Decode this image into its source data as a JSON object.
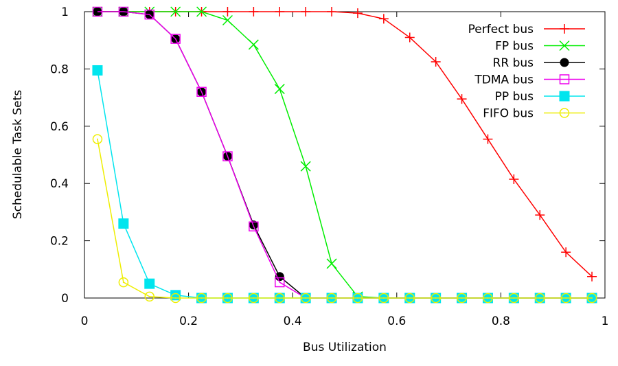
{
  "chart_data": {
    "type": "line",
    "title": "",
    "xlabel": "Bus Utilization",
    "ylabel": "Schedulable Task Sets",
    "xlim": [
      0,
      1
    ],
    "ylim": [
      0,
      1
    ],
    "xticks": [
      "0",
      "0.2",
      "0.4",
      "0.6",
      "0.8",
      "1"
    ],
    "yticks": [
      "0",
      "0.2",
      "0.4",
      "0.6",
      "0.8",
      "1"
    ],
    "grid": false,
    "legend_position": "top-right",
    "x": [
      0.025,
      0.075,
      0.125,
      0.175,
      0.225,
      0.275,
      0.325,
      0.375,
      0.425,
      0.475,
      0.525,
      0.575,
      0.625,
      0.675,
      0.725,
      0.775,
      0.825,
      0.875,
      0.925,
      0.975
    ],
    "series": [
      {
        "name": "Perfect bus",
        "color": "#ff0000",
        "marker": "plus",
        "values": [
          1,
          1,
          1,
          1,
          1,
          1,
          1,
          1,
          1,
          1,
          0.995,
          0.975,
          0.91,
          0.825,
          0.695,
          0.555,
          0.415,
          0.29,
          0.16,
          0.075
        ]
      },
      {
        "name": "FP bus",
        "color": "#00ee00",
        "marker": "cross",
        "values": [
          1,
          1,
          1,
          1,
          1,
          0.97,
          0.885,
          0.73,
          0.46,
          0.12,
          0.005,
          0,
          0,
          0,
          0,
          0,
          0,
          0,
          0,
          0
        ]
      },
      {
        "name": "RR bus",
        "color": "#000000",
        "marker": "filled-circle",
        "values": [
          1,
          1,
          0.99,
          0.905,
          0.72,
          0.495,
          0.255,
          0.075,
          0,
          0,
          0,
          0,
          0,
          0,
          0,
          0,
          0,
          0,
          0,
          0
        ]
      },
      {
        "name": "TDMA bus",
        "color": "#ee00ee",
        "marker": "open-square",
        "values": [
          1,
          1,
          0.99,
          0.905,
          0.72,
          0.495,
          0.25,
          0.055,
          0,
          0,
          0,
          0,
          0,
          0,
          0,
          0,
          0,
          0,
          0,
          0
        ]
      },
      {
        "name": "PP bus",
        "color": "#00e5ee",
        "marker": "filled-square",
        "values": [
          0.795,
          0.26,
          0.05,
          0.01,
          0,
          0,
          0,
          0,
          0,
          0,
          0,
          0,
          0,
          0,
          0,
          0,
          0,
          0,
          0,
          0
        ]
      },
      {
        "name": "FIFO bus",
        "color": "#eeee00",
        "marker": "open-circle",
        "values": [
          0.555,
          0.055,
          0.005,
          0,
          0,
          0,
          0,
          0,
          0,
          0,
          0,
          0,
          0,
          0,
          0,
          0,
          0,
          0,
          0,
          0
        ]
      }
    ]
  }
}
